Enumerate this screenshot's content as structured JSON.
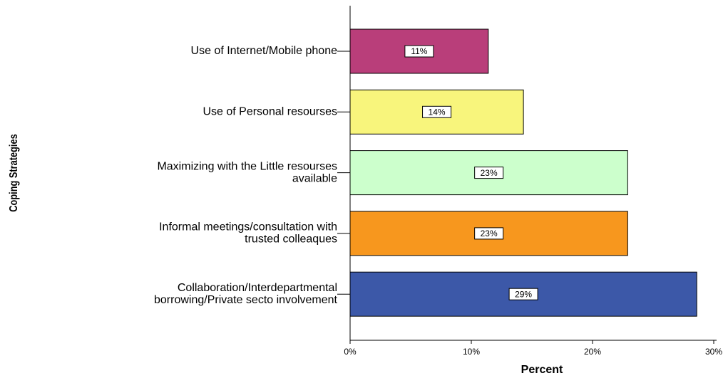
{
  "chart_data": {
    "type": "bar",
    "orientation": "horizontal",
    "x_label": "Percent",
    "y_label": "Coping Strategies",
    "categories": [
      [
        "Use of Internet/Mobile phone"
      ],
      [
        "Use of Personal resourses"
      ],
      [
        "Maximizing with the Little resourses",
        "available"
      ],
      [
        "Informal meetings/consultation with",
        "trusted colleaques"
      ],
      [
        "Collaboration/Interdepartmental",
        "borrowing/Private secto involvement"
      ]
    ],
    "values": [
      11.4,
      14.3,
      22.9,
      22.9,
      28.6
    ],
    "value_labels": [
      "11%",
      "14%",
      "23%",
      "23%",
      "29%"
    ],
    "colors": [
      "#b93e7a",
      "#f8f57c",
      "#ccffcc",
      "#f7971e",
      "#3c58a8"
    ],
    "xlim": [
      0,
      30
    ],
    "xticks": [
      {
        "value": 0,
        "label": "0%"
      },
      {
        "value": 10,
        "label": "10%"
      },
      {
        "value": 20,
        "label": "20%"
      },
      {
        "value": 30,
        "label": "30%"
      }
    ]
  }
}
